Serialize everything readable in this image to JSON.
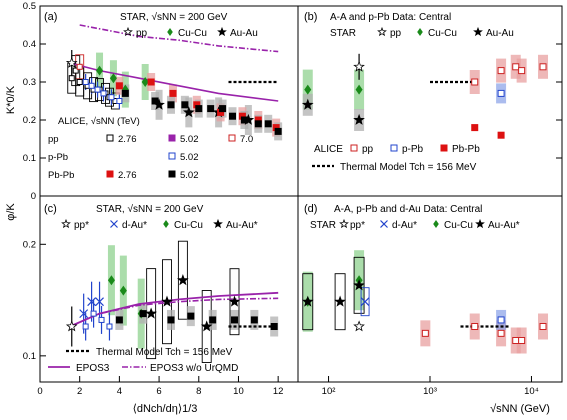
{
  "colors": {
    "pp": "#000000",
    "cucu": "#1a8a1a",
    "auau": "#000000",
    "alice_pp": "#cc2222",
    "alice_ppb": "#2244cc",
    "alice_pbpb": "#dd1111",
    "black": "#000000",
    "purple": "#9922aa",
    "band_green": "#8fd18f",
    "band_red": "#e8a0a0",
    "band_blue": "#8fa6e8",
    "band_gray": "#b0b0b0"
  },
  "chart_data": [
    {
      "panel": "(a)",
      "type": "scatter",
      "ylabel": "K*0/K",
      "ylim": [
        0,
        0.5
      ],
      "xlim": [
        0,
        13
      ],
      "log_x": false,
      "y_ticks": [
        "0",
        "0.1",
        "0.2",
        "0.3",
        "0.4",
        "0.5"
      ],
      "annotations": [
        "STAR, √sNN = 200 GeV",
        "pp",
        "Cu-Cu",
        "Au-Au"
      ],
      "alice_legend": {
        "title": "ALICE, √sNN (TeV)",
        "rows": [
          [
            "pp",
            "2.76",
            "5.02",
            "7.0"
          ],
          [
            "p-Pb",
            "",
            "5.02",
            ""
          ],
          [
            "Pb-Pb",
            "2.76",
            "5.02",
            ""
          ]
        ]
      },
      "series": [
        {
          "name": "STAR pp",
          "x": [
            1.6
          ],
          "y": [
            0.35
          ]
        },
        {
          "name": "STAR Cu-Cu",
          "x": [
            3.0,
            3.7,
            4.3,
            5.3
          ],
          "y": [
            0.33,
            0.31,
            0.28,
            0.3
          ]
        },
        {
          "name": "STAR Au-Au",
          "x": [
            6.0,
            7.5,
            9.0,
            10.5
          ],
          "y": [
            0.24,
            0.22,
            0.22,
            0.2
          ]
        },
        {
          "name": "ALICE pp 2.76 TeV",
          "x": [
            1.8
          ],
          "y": [
            0.33
          ]
        },
        {
          "name": "ALICE pp 7.0 TeV",
          "x": [
            2.0
          ],
          "y": [
            0.34
          ]
        },
        {
          "name": "ALICE pp 5.02 TeV",
          "x": [
            1.6,
            2.0,
            2.4,
            2.7,
            3.0,
            3.3,
            3.5,
            3.8
          ],
          "y": [
            0.31,
            0.3,
            0.29,
            0.28,
            0.28,
            0.27,
            0.26,
            0.25
          ]
        },
        {
          "name": "ALICE p-Pb 5.02 TeV",
          "x": [
            2.3,
            2.6,
            2.9,
            3.2,
            3.6,
            4.0
          ],
          "y": [
            0.3,
            0.29,
            0.28,
            0.27,
            0.26,
            0.25
          ]
        },
        {
          "name": "ALICE Pb-Pb 2.76 TeV",
          "x": [
            4.0,
            5.6,
            6.7,
            7.9,
            9.1,
            10.2,
            11.0,
            11.9
          ],
          "y": [
            0.29,
            0.3,
            0.27,
            0.24,
            0.22,
            0.21,
            0.2,
            0.18
          ]
        },
        {
          "name": "ALICE Pb-Pb 5.02 TeV",
          "x": [
            4.3,
            5.8,
            6.6,
            7.3,
            8.0,
            8.6,
            9.2,
            9.7,
            10.3,
            11.0,
            11.5,
            12.0
          ],
          "y": [
            0.27,
            0.25,
            0.24,
            0.24,
            0.23,
            0.23,
            0.23,
            0.21,
            0.2,
            0.19,
            0.19,
            0.17
          ]
        },
        {
          "name": "EPOS3 (purple solid)",
          "x": [
            1.5,
            3,
            5,
            7,
            9,
            12
          ],
          "y": [
            0.35,
            0.33,
            0.31,
            0.29,
            0.27,
            0.25
          ]
        },
        {
          "name": "EPOS3 w/o UrQMD (purple dash-dot)",
          "x": [
            2,
            3,
            5,
            7,
            9,
            11,
            12
          ],
          "y": [
            0.45,
            0.44,
            0.42,
            0.41,
            0.395,
            0.385,
            0.38
          ]
        },
        {
          "name": "Thermal Model",
          "x": [
            9.5,
            12
          ],
          "y": [
            0.3,
            0.3
          ]
        }
      ]
    },
    {
      "panel": "(b)",
      "type": "scatter",
      "ylim": [
        0,
        0.5
      ],
      "log_x": true,
      "xlim": [
        50,
        20000
      ],
      "annotations": [
        "A-A and p-Pb Data: Central",
        "STAR",
        "pp",
        "Cu-Cu",
        "Au-Au",
        "ALICE",
        "pp",
        "p-Pb",
        "Pb-Pb",
        "Thermal Model  Tch = 156 MeV"
      ],
      "series": [
        {
          "name": "STAR Cu-Cu",
          "x": [
            62.4,
            200
          ],
          "y": [
            0.28,
            0.28
          ]
        },
        {
          "name": "STAR Au-Au",
          "x": [
            62.4,
            200
          ],
          "y": [
            0.24,
            0.2
          ]
        },
        {
          "name": "STAR pp",
          "x": [
            200
          ],
          "y": [
            0.34
          ]
        },
        {
          "name": "ALICE pp",
          "x": [
            2760,
            5020,
            7000,
            8000,
            13000
          ],
          "y": [
            0.3,
            0.33,
            0.34,
            0.33,
            0.34
          ]
        },
        {
          "name": "ALICE p-Pb",
          "x": [
            5020
          ],
          "y": [
            0.27
          ]
        },
        {
          "name": "ALICE Pb-Pb",
          "x": [
            2760,
            5020
          ],
          "y": [
            0.18,
            0.16
          ]
        },
        {
          "name": "Thermal Model",
          "x": [
            1000,
            3000
          ],
          "y": [
            0.3,
            0.3
          ]
        }
      ]
    },
    {
      "panel": "(c)",
      "type": "scatter",
      "ylabel": "φ/K",
      "log_y": true,
      "ylim": [
        0.085,
        0.27
      ],
      "xlim": [
        0,
        13
      ],
      "xlabel": "⟨dNch/dη⟩1/3",
      "x_ticks": [
        "0",
        "2",
        "4",
        "6",
        "8",
        "10",
        "12"
      ],
      "y_ticks": [
        "0.1",
        "0.2"
      ],
      "annotations": [
        "STAR, √sNN = 200 GeV",
        "pp*",
        "d-Au*",
        "Cu-Cu",
        "Au-Au*",
        "Thermal Model  Tch = 156 MeV",
        "EPOS3",
        "EPOS3 w/o UrQMD"
      ],
      "series": [
        {
          "name": "STAR pp*",
          "x": [
            1.6
          ],
          "y": [
            0.12
          ]
        },
        {
          "name": "STAR d-Au*",
          "x": [
            2.2,
            2.6,
            3.0
          ],
          "y": [
            0.13,
            0.14,
            0.14
          ]
        },
        {
          "name": "STAR Cu-Cu",
          "x": [
            3.6,
            4.2,
            5.1
          ],
          "y": [
            0.16,
            0.15,
            0.13
          ]
        },
        {
          "name": "STAR Au-Au*",
          "x": [
            5.6,
            6.4,
            7.2,
            8.4,
            9.8
          ],
          "y": [
            0.13,
            0.14,
            0.16,
            0.12,
            0.14
          ]
        },
        {
          "name": "ALICE p-Pb",
          "x": [
            2.3,
            2.7,
            3.1,
            3.5
          ],
          "y": [
            0.12,
            0.13,
            0.125,
            0.12
          ]
        },
        {
          "name": "ALICE Pb-Pb",
          "x": [
            4.0,
            5.2,
            6.6,
            7.6,
            8.7,
            9.8,
            10.8,
            11.8
          ],
          "y": [
            0.125,
            0.13,
            0.125,
            0.128,
            0.125,
            0.125,
            0.125,
            0.12
          ]
        },
        {
          "name": "EPOS3",
          "x": [
            1.5,
            3,
            5,
            7,
            9,
            12
          ],
          "y": [
            0.12,
            0.13,
            0.138,
            0.142,
            0.145,
            0.148
          ]
        },
        {
          "name": "EPOS3 w/o UrQMD",
          "x": [
            1.5,
            3,
            5,
            7,
            9,
            12
          ],
          "y": [
            0.12,
            0.13,
            0.137,
            0.14,
            0.142,
            0.143
          ]
        },
        {
          "name": "Thermal Model",
          "x": [
            9.5,
            12
          ],
          "y": [
            0.12,
            0.12
          ]
        }
      ]
    },
    {
      "panel": "(d)",
      "type": "scatter",
      "log_x": true,
      "log_y": true,
      "xlim": [
        50,
        20000
      ],
      "ylim": [
        0.085,
        0.27
      ],
      "xlabel": "√sNN (GeV)",
      "x_ticks": [
        "10²",
        "10³",
        "10⁴"
      ],
      "annotations": [
        "A-A, p-Pb and d-Au Data: Central",
        "STAR",
        "pp*",
        "d-Au*",
        "Cu-Cu",
        "Au-Au*"
      ],
      "series": [
        {
          "name": "STAR Cu-Cu",
          "x": [
            62.4,
            200
          ],
          "y": [
            0.14,
            0.16
          ]
        },
        {
          "name": "STAR Au-Au*",
          "x": [
            62.4,
            130,
            200
          ],
          "y": [
            0.14,
            0.14,
            0.155
          ]
        },
        {
          "name": "STAR d-Au*",
          "x": [
            200
          ],
          "y": [
            0.14
          ]
        },
        {
          "name": "STAR pp*",
          "x": [
            200
          ],
          "y": [
            0.12
          ]
        },
        {
          "name": "ALICE pp",
          "x": [
            900,
            2760,
            5020,
            7000,
            8000,
            13000
          ],
          "y": [
            0.115,
            0.12,
            0.115,
            0.11,
            0.11,
            0.12
          ]
        },
        {
          "name": "ALICE p-Pb",
          "x": [
            5020
          ],
          "y": [
            0.125
          ]
        },
        {
          "name": "Thermal Model",
          "x": [
            2000,
            6000
          ],
          "y": [
            0.12,
            0.12
          ]
        }
      ]
    }
  ]
}
